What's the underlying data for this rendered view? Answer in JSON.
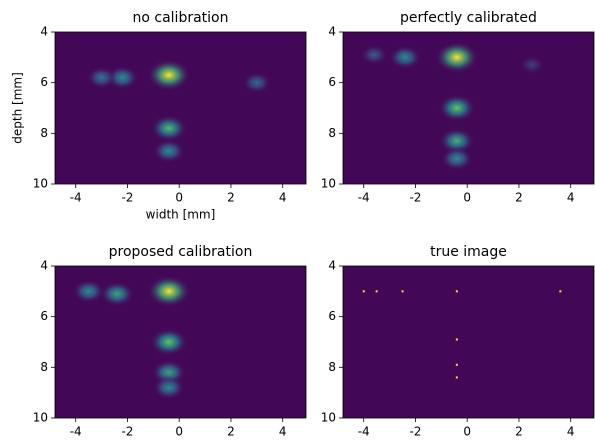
{
  "chart_data": [
    {
      "type": "heatmap",
      "title": "no calibration",
      "xlabel": "width [mm]",
      "ylabel": "depth [mm]",
      "xlim": [
        -4.8,
        4.9
      ],
      "ylim": [
        10,
        4
      ],
      "xticks": [
        -4,
        -2,
        0,
        2,
        4
      ],
      "yticks": [
        4,
        6,
        8,
        10
      ],
      "spots": {
        "x": [
          -0.4,
          -2.2,
          -3.0,
          3.0,
          -0.4,
          -0.4
        ],
        "y": [
          5.7,
          5.8,
          5.8,
          6.0,
          7.8,
          8.7
        ],
        "intensity": [
          1.0,
          0.5,
          0.4,
          0.35,
          0.7,
          0.5
        ]
      }
    },
    {
      "type": "heatmap",
      "title": "perfectly calibrated",
      "xlim": [
        -4.8,
        4.9
      ],
      "ylim": [
        10,
        4
      ],
      "xticks": [
        -4,
        -2,
        0,
        2,
        4
      ],
      "yticks": [
        4,
        6,
        8,
        10
      ],
      "spots": {
        "x": [
          -0.4,
          -2.4,
          -3.6,
          -0.4,
          -0.4,
          -0.4,
          2.5
        ],
        "y": [
          5.0,
          5.0,
          4.9,
          7.0,
          8.3,
          9.0,
          5.3
        ],
        "intensity": [
          1.0,
          0.5,
          0.3,
          0.75,
          0.65,
          0.5,
          0.2
        ]
      }
    },
    {
      "type": "heatmap",
      "title": "proposed calibration",
      "xlim": [
        -4.8,
        4.9
      ],
      "ylim": [
        10,
        4
      ],
      "xticks": [
        -4,
        -2,
        0,
        2,
        4
      ],
      "yticks": [
        4,
        6,
        8,
        10
      ],
      "spots": {
        "x": [
          -0.4,
          -2.4,
          -3.5,
          -0.4,
          -0.4,
          -0.4
        ],
        "y": [
          5.0,
          5.1,
          5.0,
          7.0,
          8.2,
          8.8
        ],
        "intensity": [
          1.0,
          0.6,
          0.5,
          0.75,
          0.6,
          0.5
        ]
      }
    },
    {
      "type": "scatter",
      "title": "true image",
      "xlim": [
        -4.8,
        4.9
      ],
      "ylim": [
        10,
        4
      ],
      "xticks": [
        -4,
        -2,
        0,
        2,
        4
      ],
      "yticks": [
        4,
        6,
        8,
        10
      ],
      "spots": {
        "x": [
          -4.0,
          -3.5,
          -2.5,
          -0.4,
          3.6,
          -0.4,
          -0.4,
          -0.4
        ],
        "y": [
          5.0,
          5.0,
          5.0,
          5.0,
          5.0,
          6.9,
          7.9,
          8.4
        ],
        "intensity": [
          1,
          1,
          1,
          1,
          1,
          1,
          1,
          1
        ]
      }
    }
  ]
}
